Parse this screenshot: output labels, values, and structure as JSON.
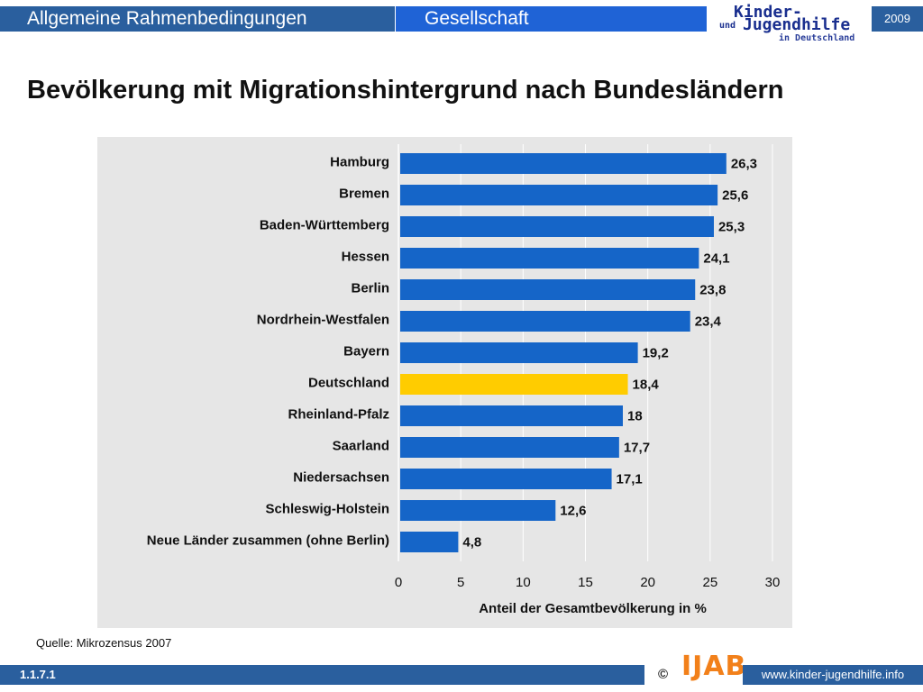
{
  "header": {
    "tab1": "Allgemeine Rahmenbedingungen",
    "tab2": "Gesellschaft",
    "logo_line1": "Kinder-",
    "logo_und": "und",
    "logo_line2": "Jugendhilfe",
    "logo_line3": "in Deutschland",
    "year": "2009"
  },
  "title": "Bevölkerung mit Migrationshintergrund nach Bundesländern",
  "source": "Quelle: Mikrozensus 2007",
  "footer": {
    "slide_number": "1.1.7.1",
    "copyright": "©",
    "logo": "IJAB",
    "url": "www.kinder-jugendhilfe.info"
  },
  "colors": {
    "bar": "#1565c8",
    "highlight": "#ffcc00",
    "plot_bg": "#e6e6e6"
  },
  "chart_data": {
    "type": "bar",
    "orientation": "horizontal",
    "categories": [
      "Hamburg",
      "Bremen",
      "Baden-Württemberg",
      "Hessen",
      "Berlin",
      "Nordrhein-Westfalen",
      "Bayern",
      "Deutschland",
      "Rheinland-Pfalz",
      "Saarland",
      "Niedersachsen",
      "Schleswig-Holstein",
      "Neue Länder zusammen (ohne Berlin)"
    ],
    "values": [
      26.3,
      25.6,
      25.3,
      24.1,
      23.8,
      23.4,
      19.2,
      18.4,
      18,
      17.7,
      17.1,
      12.6,
      4.8
    ],
    "value_labels": [
      "26,3",
      "25,6",
      "25,3",
      "24,1",
      "23,8",
      "23,4",
      "19,2",
      "18,4",
      "18",
      "17,7",
      "17,1",
      "12,6",
      "4,8"
    ],
    "highlight_category": "Deutschland",
    "xlabel": "Anteil der Gesamtbevölkerung in %",
    "xlim": [
      0,
      30
    ],
    "xticks": [
      0,
      5,
      10,
      15,
      20,
      25,
      30
    ],
    "grid": true
  }
}
